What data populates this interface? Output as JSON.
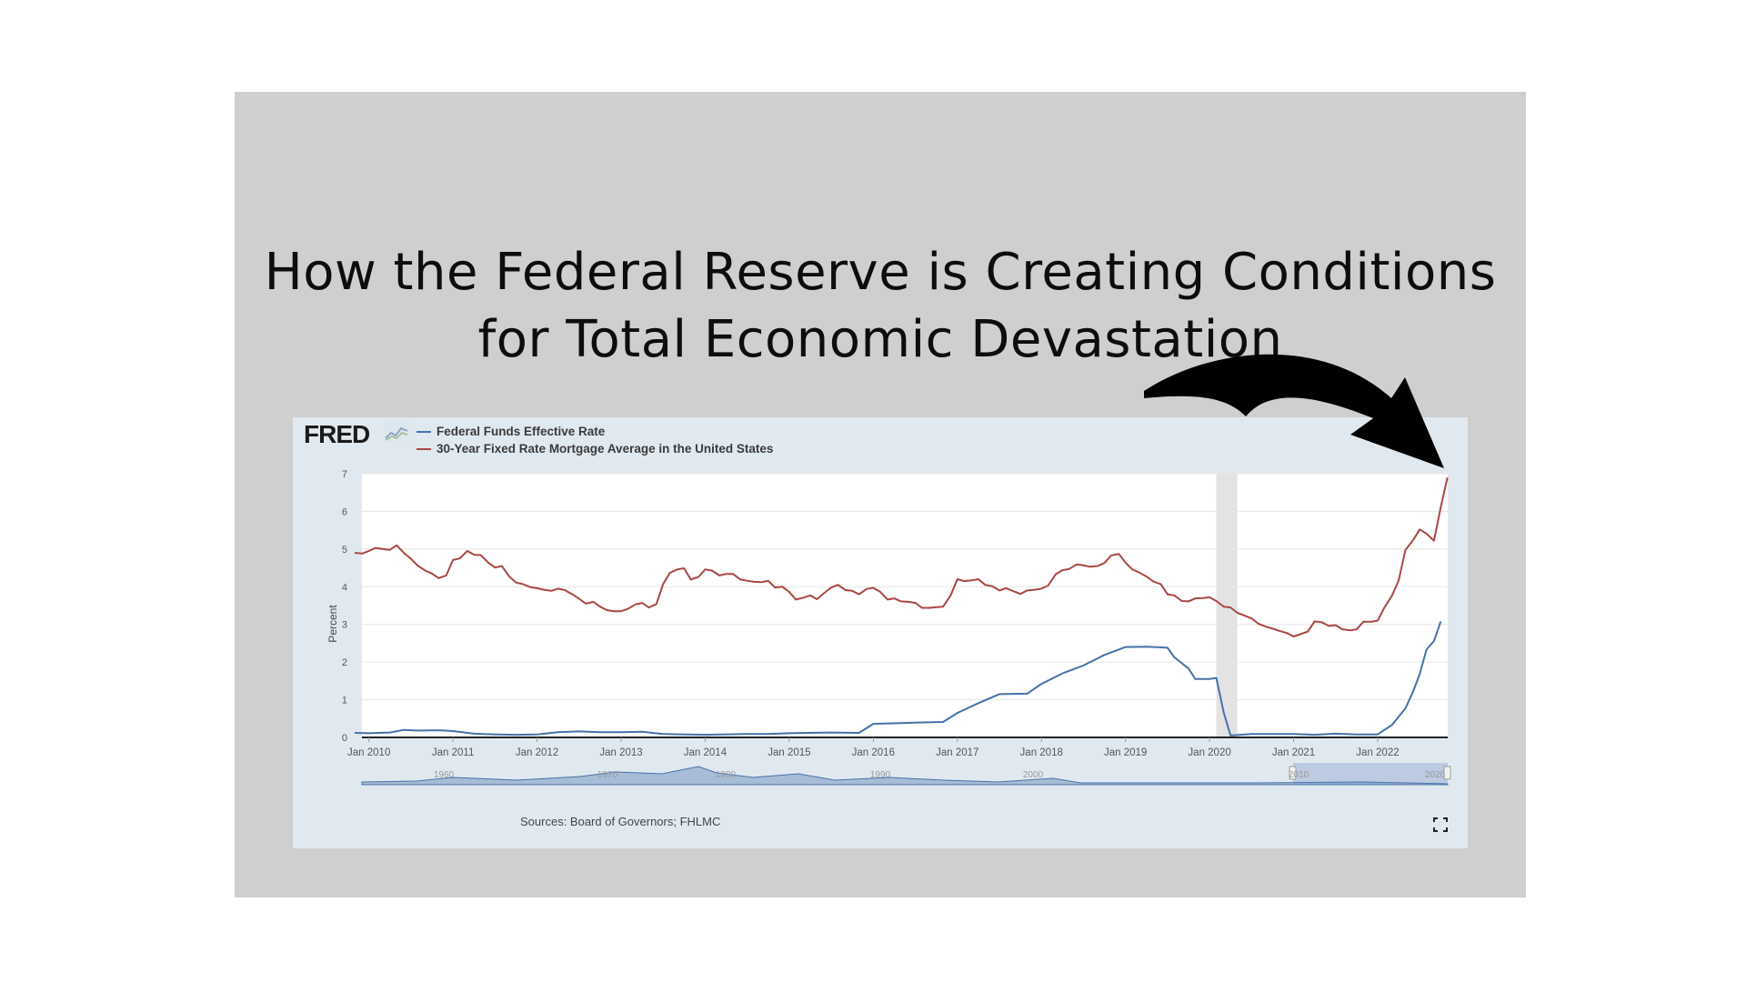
{
  "headline": {
    "line1": "How the Federal Reserve is Creating Conditions",
    "line2": "for Total Economic Devastation"
  },
  "fred": {
    "logo": "FRED",
    "sources": "Sources: Board of Governors; FHLMC"
  },
  "colors": {
    "slide_bg": "#cfcfcf",
    "panel_bg": "#e1e9f0",
    "fed_funds": "#4572a7",
    "mortgage": "#aa4643",
    "arrow": "#000000"
  },
  "chart_data": {
    "type": "line",
    "title": "",
    "xlabel": "",
    "ylabel": "Percent",
    "ylim": [
      0,
      7
    ],
    "xlim": [
      "2009-12",
      "2022-11"
    ],
    "y_ticks": [
      "0",
      "1",
      "2",
      "3",
      "4",
      "5",
      "6",
      "7"
    ],
    "x_ticks": [
      {
        "t": 2010.0,
        "label": "Jan 2010"
      },
      {
        "t": 2011.0,
        "label": "Jan 2011"
      },
      {
        "t": 2012.0,
        "label": "Jan 2012"
      },
      {
        "t": 2013.0,
        "label": "Jan 2013"
      },
      {
        "t": 2014.0,
        "label": "Jan 2014"
      },
      {
        "t": 2015.0,
        "label": "Jan 2015"
      },
      {
        "t": 2016.0,
        "label": "Jan 2016"
      },
      {
        "t": 2017.0,
        "label": "Jan 2017"
      },
      {
        "t": 2018.0,
        "label": "Jan 2018"
      },
      {
        "t": 2019.0,
        "label": "Jan 2019"
      },
      {
        "t": 2020.0,
        "label": "Jan 2020"
      },
      {
        "t": 2021.0,
        "label": "Jan 2021"
      },
      {
        "t": 2022.0,
        "label": "Jan 2022"
      }
    ],
    "recession": {
      "from": 2020.08,
      "to": 2020.33
    },
    "grid": true,
    "legend_position": "top-left",
    "series": [
      {
        "name": "Federal Funds Effective Rate",
        "color": "#4572a7",
        "points": [
          [
            2009.83,
            0.12
          ],
          [
            2010.0,
            0.11
          ],
          [
            2010.25,
            0.13
          ],
          [
            2010.42,
            0.2
          ],
          [
            2010.58,
            0.18
          ],
          [
            2010.83,
            0.19
          ],
          [
            2011.0,
            0.17
          ],
          [
            2011.25,
            0.1
          ],
          [
            2011.5,
            0.08
          ],
          [
            2011.75,
            0.07
          ],
          [
            2012.0,
            0.08
          ],
          [
            2012.25,
            0.14
          ],
          [
            2012.5,
            0.16
          ],
          [
            2012.75,
            0.14
          ],
          [
            2013.0,
            0.14
          ],
          [
            2013.25,
            0.15
          ],
          [
            2013.5,
            0.09
          ],
          [
            2013.75,
            0.08
          ],
          [
            2014.0,
            0.07
          ],
          [
            2014.5,
            0.09
          ],
          [
            2014.75,
            0.09
          ],
          [
            2015.0,
            0.11
          ],
          [
            2015.5,
            0.13
          ],
          [
            2015.83,
            0.12
          ],
          [
            2016.0,
            0.36
          ],
          [
            2016.5,
            0.39
          ],
          [
            2016.83,
            0.41
          ],
          [
            2017.0,
            0.65
          ],
          [
            2017.25,
            0.91
          ],
          [
            2017.5,
            1.15
          ],
          [
            2017.83,
            1.16
          ],
          [
            2018.0,
            1.42
          ],
          [
            2018.25,
            1.7
          ],
          [
            2018.5,
            1.91
          ],
          [
            2018.75,
            2.19
          ],
          [
            2019.0,
            2.4
          ],
          [
            2019.25,
            2.41
          ],
          [
            2019.5,
            2.38
          ],
          [
            2019.58,
            2.13
          ],
          [
            2019.75,
            1.83
          ],
          [
            2019.83,
            1.55
          ],
          [
            2020.0,
            1.55
          ],
          [
            2020.08,
            1.58
          ],
          [
            2020.17,
            0.65
          ],
          [
            2020.25,
            0.05
          ],
          [
            2020.5,
            0.09
          ],
          [
            2020.75,
            0.09
          ],
          [
            2021.0,
            0.09
          ],
          [
            2021.25,
            0.07
          ],
          [
            2021.5,
            0.1
          ],
          [
            2021.75,
            0.08
          ],
          [
            2022.0,
            0.08
          ],
          [
            2022.17,
            0.33
          ],
          [
            2022.33,
            0.77
          ],
          [
            2022.42,
            1.21
          ],
          [
            2022.5,
            1.68
          ],
          [
            2022.58,
            2.33
          ],
          [
            2022.67,
            2.56
          ],
          [
            2022.75,
            3.08
          ]
        ]
      },
      {
        "name": "30-Year Fixed Rate Mortgage Average in the United States",
        "color": "#aa4643",
        "points": [
          [
            2009.83,
            4.9
          ],
          [
            2009.92,
            4.88
          ],
          [
            2010.0,
            4.95
          ],
          [
            2010.08,
            5.03
          ],
          [
            2010.17,
            5.0
          ],
          [
            2010.25,
            4.98
          ],
          [
            2010.33,
            5.1
          ],
          [
            2010.42,
            4.89
          ],
          [
            2010.5,
            4.74
          ],
          [
            2010.58,
            4.56
          ],
          [
            2010.67,
            4.43
          ],
          [
            2010.75,
            4.35
          ],
          [
            2010.83,
            4.23
          ],
          [
            2010.92,
            4.3
          ],
          [
            2011.0,
            4.71
          ],
          [
            2011.08,
            4.75
          ],
          [
            2011.17,
            4.95
          ],
          [
            2011.25,
            4.85
          ],
          [
            2011.33,
            4.84
          ],
          [
            2011.42,
            4.64
          ],
          [
            2011.5,
            4.51
          ],
          [
            2011.58,
            4.55
          ],
          [
            2011.67,
            4.27
          ],
          [
            2011.75,
            4.11
          ],
          [
            2011.83,
            4.07
          ],
          [
            2011.92,
            3.99
          ],
          [
            2012.0,
            3.96
          ],
          [
            2012.08,
            3.92
          ],
          [
            2012.17,
            3.89
          ],
          [
            2012.25,
            3.95
          ],
          [
            2012.33,
            3.91
          ],
          [
            2012.42,
            3.8
          ],
          [
            2012.5,
            3.68
          ],
          [
            2012.58,
            3.55
          ],
          [
            2012.67,
            3.6
          ],
          [
            2012.75,
            3.47
          ],
          [
            2012.83,
            3.38
          ],
          [
            2012.92,
            3.35
          ],
          [
            2013.0,
            3.35
          ],
          [
            2013.08,
            3.41
          ],
          [
            2013.17,
            3.53
          ],
          [
            2013.25,
            3.57
          ],
          [
            2013.33,
            3.45
          ],
          [
            2013.42,
            3.54
          ],
          [
            2013.5,
            4.07
          ],
          [
            2013.58,
            4.37
          ],
          [
            2013.67,
            4.46
          ],
          [
            2013.75,
            4.49
          ],
          [
            2013.83,
            4.19
          ],
          [
            2013.92,
            4.26
          ],
          [
            2014.0,
            4.46
          ],
          [
            2014.08,
            4.43
          ],
          [
            2014.17,
            4.3
          ],
          [
            2014.25,
            4.34
          ],
          [
            2014.33,
            4.34
          ],
          [
            2014.42,
            4.19
          ],
          [
            2014.5,
            4.16
          ],
          [
            2014.58,
            4.13
          ],
          [
            2014.67,
            4.12
          ],
          [
            2014.75,
            4.16
          ],
          [
            2014.83,
            3.98
          ],
          [
            2014.92,
            4.0
          ],
          [
            2015.0,
            3.86
          ],
          [
            2015.08,
            3.66
          ],
          [
            2015.17,
            3.71
          ],
          [
            2015.25,
            3.77
          ],
          [
            2015.33,
            3.67
          ],
          [
            2015.42,
            3.84
          ],
          [
            2015.5,
            3.98
          ],
          [
            2015.58,
            4.05
          ],
          [
            2015.67,
            3.91
          ],
          [
            2015.75,
            3.89
          ],
          [
            2015.83,
            3.8
          ],
          [
            2015.92,
            3.94
          ],
          [
            2016.0,
            3.97
          ],
          [
            2016.08,
            3.87
          ],
          [
            2016.17,
            3.66
          ],
          [
            2016.25,
            3.69
          ],
          [
            2016.33,
            3.61
          ],
          [
            2016.42,
            3.6
          ],
          [
            2016.5,
            3.57
          ],
          [
            2016.58,
            3.44
          ],
          [
            2016.67,
            3.44
          ],
          [
            2016.75,
            3.46
          ],
          [
            2016.83,
            3.47
          ],
          [
            2016.92,
            3.77
          ],
          [
            2017.0,
            4.2
          ],
          [
            2017.08,
            4.15
          ],
          [
            2017.17,
            4.17
          ],
          [
            2017.25,
            4.2
          ],
          [
            2017.33,
            4.05
          ],
          [
            2017.42,
            4.01
          ],
          [
            2017.5,
            3.9
          ],
          [
            2017.58,
            3.96
          ],
          [
            2017.67,
            3.88
          ],
          [
            2017.75,
            3.81
          ],
          [
            2017.83,
            3.9
          ],
          [
            2017.92,
            3.92
          ],
          [
            2018.0,
            3.95
          ],
          [
            2018.08,
            4.03
          ],
          [
            2018.17,
            4.33
          ],
          [
            2018.25,
            4.44
          ],
          [
            2018.33,
            4.47
          ],
          [
            2018.42,
            4.59
          ],
          [
            2018.5,
            4.57
          ],
          [
            2018.58,
            4.53
          ],
          [
            2018.67,
            4.55
          ],
          [
            2018.75,
            4.63
          ],
          [
            2018.83,
            4.83
          ],
          [
            2018.92,
            4.87
          ],
          [
            2019.0,
            4.64
          ],
          [
            2019.08,
            4.46
          ],
          [
            2019.17,
            4.37
          ],
          [
            2019.25,
            4.27
          ],
          [
            2019.33,
            4.14
          ],
          [
            2019.42,
            4.07
          ],
          [
            2019.5,
            3.8
          ],
          [
            2019.58,
            3.77
          ],
          [
            2019.67,
            3.62
          ],
          [
            2019.75,
            3.61
          ],
          [
            2019.83,
            3.69
          ],
          [
            2019.92,
            3.7
          ],
          [
            2020.0,
            3.72
          ],
          [
            2020.08,
            3.62
          ],
          [
            2020.17,
            3.47
          ],
          [
            2020.25,
            3.45
          ],
          [
            2020.33,
            3.31
          ],
          [
            2020.42,
            3.23
          ],
          [
            2020.5,
            3.16
          ],
          [
            2020.58,
            3.02
          ],
          [
            2020.67,
            2.94
          ],
          [
            2020.75,
            2.89
          ],
          [
            2020.83,
            2.83
          ],
          [
            2020.92,
            2.77
          ],
          [
            2021.0,
            2.68
          ],
          [
            2021.08,
            2.74
          ],
          [
            2021.17,
            2.81
          ],
          [
            2021.25,
            3.08
          ],
          [
            2021.33,
            3.06
          ],
          [
            2021.42,
            2.96
          ],
          [
            2021.5,
            2.98
          ],
          [
            2021.58,
            2.87
          ],
          [
            2021.67,
            2.84
          ],
          [
            2021.75,
            2.87
          ],
          [
            2021.83,
            3.07
          ],
          [
            2021.92,
            3.07
          ],
          [
            2022.0,
            3.1
          ],
          [
            2022.08,
            3.45
          ],
          [
            2022.17,
            3.76
          ],
          [
            2022.25,
            4.17
          ],
          [
            2022.33,
            4.98
          ],
          [
            2022.42,
            5.23
          ],
          [
            2022.5,
            5.52
          ],
          [
            2022.58,
            5.41
          ],
          [
            2022.67,
            5.22
          ],
          [
            2022.75,
            6.11
          ],
          [
            2022.83,
            6.9
          ]
        ]
      }
    ],
    "navigator": {
      "tick_labels": [
        "1960",
        "1970",
        "1980",
        "1990",
        "2000",
        "2010",
        "2020"
      ]
    }
  }
}
